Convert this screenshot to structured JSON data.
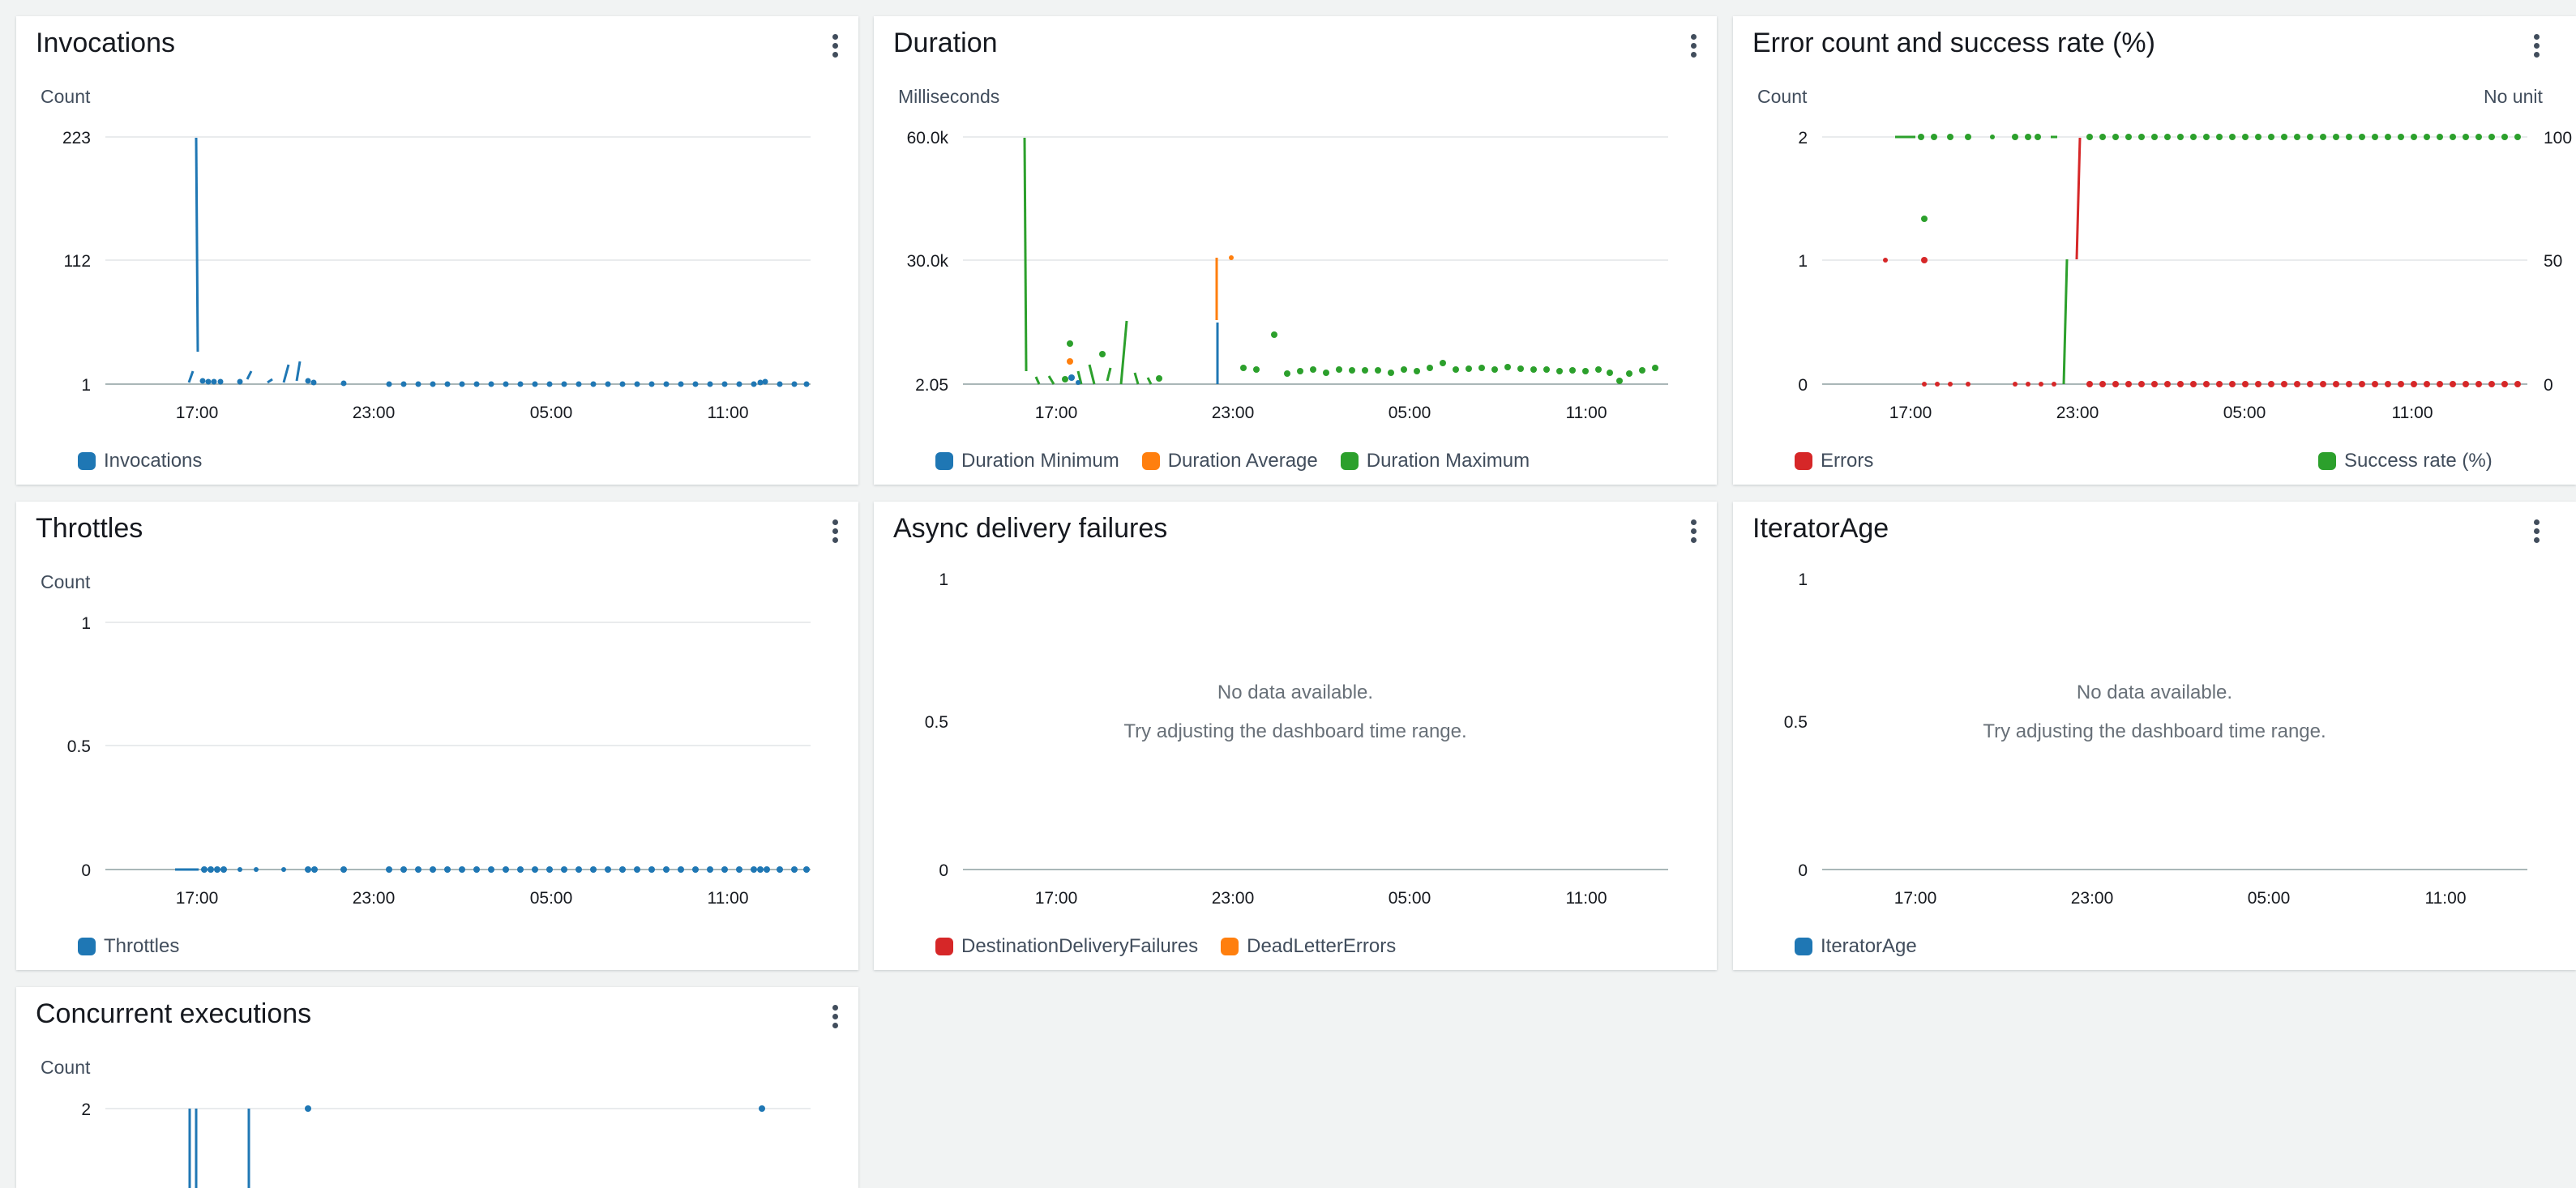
{
  "colors": {
    "blue": "#1f77b4",
    "orange": "#ff7f0e",
    "green": "#2ca02c",
    "red": "#d62728",
    "grid": "#e9ebed",
    "axis": "#aab7b8"
  },
  "x_ticks": [
    "17:00",
    "23:00",
    "05:00",
    "11:00"
  ],
  "no_data": {
    "line1": "No data available.",
    "line2": "Try adjusting the dashboard time range."
  },
  "widgets": [
    {
      "title": "Invocations",
      "unit": "Count",
      "y_ticks": [
        "223",
        "112",
        "1"
      ],
      "legend": [
        {
          "label": "Invocations",
          "color": "#1f77b4"
        }
      ]
    },
    {
      "title": "Duration",
      "unit": "Milliseconds",
      "y_ticks": [
        "60.0k",
        "30.0k",
        "2.05"
      ],
      "legend": [
        {
          "label": "Duration Minimum",
          "color": "#1f77b4"
        },
        {
          "label": "Duration Average",
          "color": "#ff7f0e"
        },
        {
          "label": "Duration Maximum",
          "color": "#2ca02c"
        }
      ]
    },
    {
      "title": "Error count and success rate (%)",
      "unit": "Count",
      "unit_right": "No unit",
      "y_ticks": [
        "2",
        "1",
        "0"
      ],
      "y_ticks_right": [
        "100",
        "50",
        "0"
      ],
      "legend": [
        {
          "label": "Errors",
          "color": "#d62728"
        }
      ],
      "legend_right": [
        {
          "label": "Success rate (%)",
          "color": "#2ca02c"
        }
      ]
    },
    {
      "title": "Throttles",
      "unit": "Count",
      "y_ticks": [
        "1",
        "0.5",
        "0"
      ],
      "legend": [
        {
          "label": "Throttles",
          "color": "#1f77b4"
        }
      ]
    },
    {
      "title": "Async delivery failures",
      "unit": "",
      "y_ticks": [
        "1",
        "0.5",
        "0"
      ],
      "legend": [
        {
          "label": "DestinationDeliveryFailures",
          "color": "#d62728"
        },
        {
          "label": "DeadLetterErrors",
          "color": "#ff7f0e"
        }
      ]
    },
    {
      "title": "IteratorAge",
      "unit": "",
      "y_ticks": [
        "1",
        "0.5",
        "0"
      ],
      "legend": [
        {
          "label": "IteratorAge",
          "color": "#1f77b4"
        }
      ]
    },
    {
      "title": "Concurrent executions",
      "unit": "Count",
      "y_ticks": [
        "2"
      ],
      "legend": []
    }
  ]
}
